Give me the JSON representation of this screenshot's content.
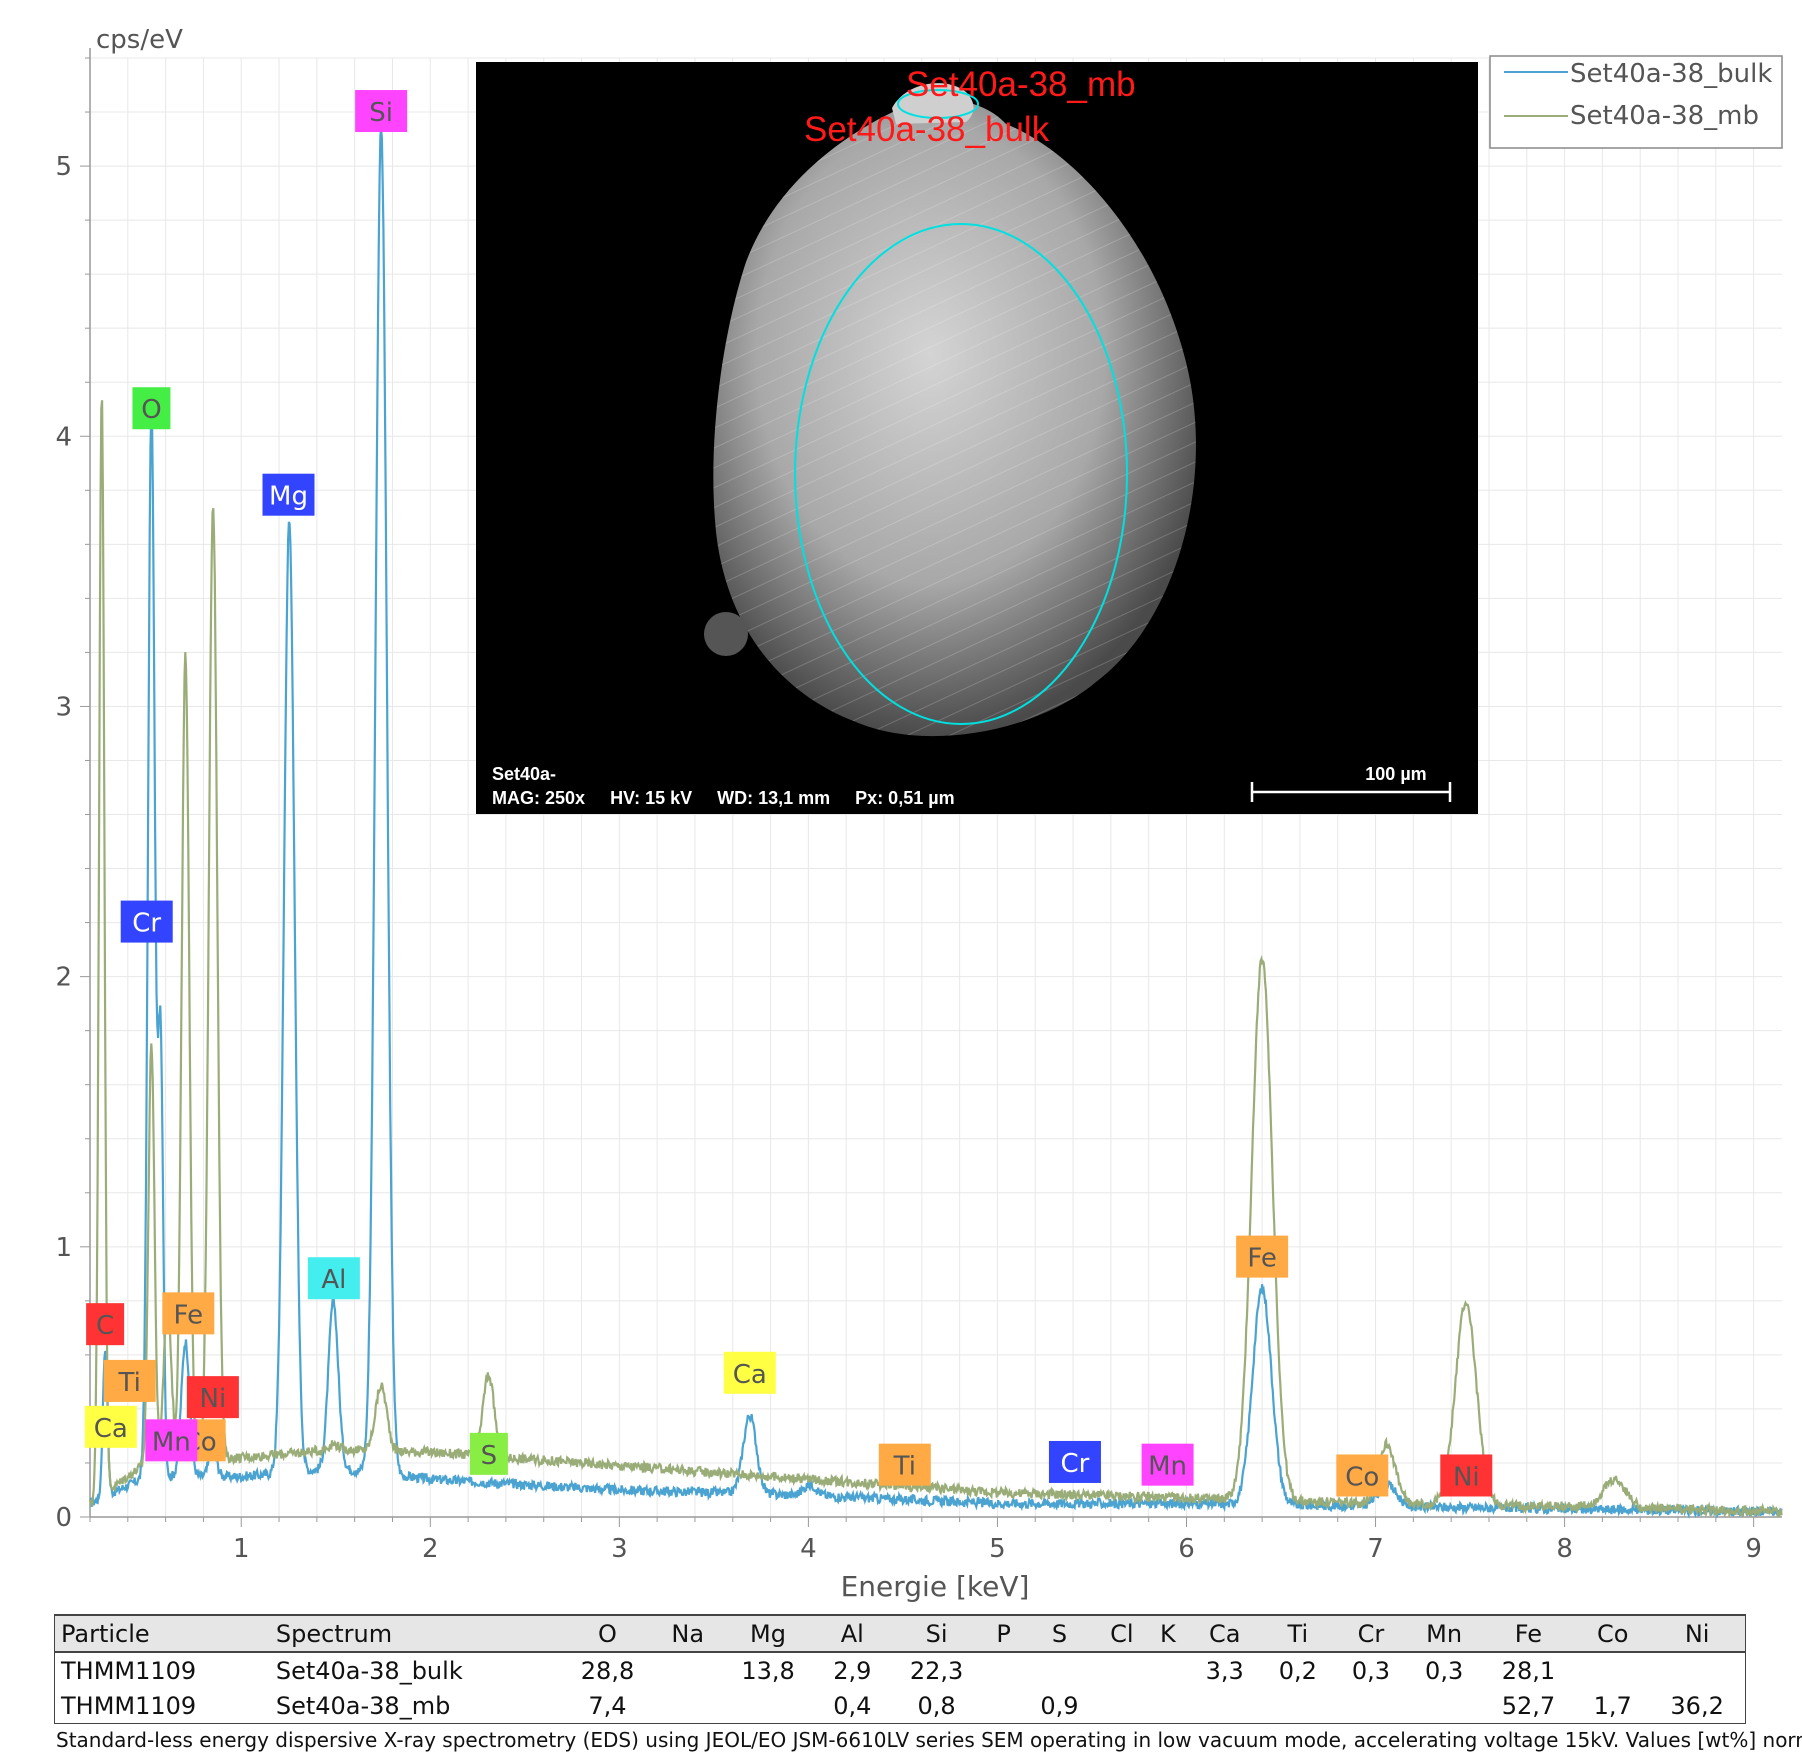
{
  "chart_data": {
    "type": "line",
    "ylabel": "cps/eV",
    "xlabel": "Energie [keV]",
    "xlim": [
      0.2,
      9.15
    ],
    "ylim": [
      0,
      5.4
    ],
    "x_ticks": [
      1,
      2,
      3,
      4,
      5,
      6,
      7,
      8,
      9
    ],
    "y_ticks": [
      0,
      1,
      2,
      3,
      4,
      5
    ],
    "grid": true,
    "legend_position": "top-right",
    "series": [
      {
        "name": "Set40a-38_bulk",
        "color": "#4aa3d0",
        "baseline": [
          [
            0.2,
            0.05
          ],
          [
            0.5,
            0.15
          ],
          [
            1.0,
            0.15
          ],
          [
            1.5,
            0.18
          ],
          [
            2.0,
            0.14
          ],
          [
            3.0,
            0.1
          ],
          [
            4.0,
            0.08
          ],
          [
            5.0,
            0.05
          ],
          [
            6.0,
            0.05
          ],
          [
            7.0,
            0.04
          ],
          [
            8.0,
            0.03
          ],
          [
            9.15,
            0.02
          ]
        ],
        "peaks": [
          {
            "x": 0.28,
            "y": 0.55,
            "w": 0.012
          },
          {
            "x": 0.525,
            "y": 3.95,
            "w": 0.018
          },
          {
            "x": 0.573,
            "y": 1.6,
            "w": 0.014
          },
          {
            "x": 0.705,
            "y": 0.5,
            "w": 0.022
          },
          {
            "x": 0.85,
            "y": 0.1,
            "w": 0.02
          },
          {
            "x": 1.254,
            "y": 3.52,
            "w": 0.028
          },
          {
            "x": 1.487,
            "y": 0.62,
            "w": 0.026
          },
          {
            "x": 1.74,
            "y": 4.98,
            "w": 0.03
          },
          {
            "x": 3.69,
            "y": 0.29,
            "w": 0.035
          },
          {
            "x": 4.01,
            "y": 0.04,
            "w": 0.035
          },
          {
            "x": 6.4,
            "y": 0.8,
            "w": 0.05
          },
          {
            "x": 7.06,
            "y": 0.08,
            "w": 0.05
          }
        ]
      },
      {
        "name": "Set40a-38_mb",
        "color": "#9aad78",
        "baseline": [
          [
            0.2,
            0.05
          ],
          [
            0.5,
            0.2
          ],
          [
            1.0,
            0.22
          ],
          [
            1.5,
            0.25
          ],
          [
            2.0,
            0.24
          ],
          [
            3.0,
            0.19
          ],
          [
            4.0,
            0.14
          ],
          [
            5.0,
            0.09
          ],
          [
            6.0,
            0.07
          ],
          [
            7.0,
            0.05
          ],
          [
            8.0,
            0.04
          ],
          [
            9.15,
            0.02
          ]
        ],
        "peaks": [
          {
            "x": 0.262,
            "y": 4.08,
            "w": 0.014
          },
          {
            "x": 0.525,
            "y": 1.55,
            "w": 0.016
          },
          {
            "x": 0.61,
            "y": 0.6,
            "w": 0.02
          },
          {
            "x": 0.705,
            "y": 2.98,
            "w": 0.02
          },
          {
            "x": 0.851,
            "y": 3.53,
            "w": 0.022
          },
          {
            "x": 1.487,
            "y": 0.02,
            "w": 0.03
          },
          {
            "x": 1.74,
            "y": 0.24,
            "w": 0.03
          },
          {
            "x": 2.308,
            "y": 0.3,
            "w": 0.03
          },
          {
            "x": 6.4,
            "y": 2.0,
            "w": 0.055
          },
          {
            "x": 7.06,
            "y": 0.22,
            "w": 0.045
          },
          {
            "x": 7.478,
            "y": 0.75,
            "w": 0.055
          },
          {
            "x": 8.265,
            "y": 0.1,
            "w": 0.06
          }
        ]
      }
    ],
    "element_labels": [
      {
        "label": "Si",
        "x": 1.74,
        "y": 5.2,
        "color": "#ff44ff"
      },
      {
        "label": "O",
        "x": 0.525,
        "y": 4.1,
        "color": "#44ee44"
      },
      {
        "label": "Mg",
        "x": 1.25,
        "y": 3.78,
        "color": "#3344ff"
      },
      {
        "label": "Cr",
        "x": 0.5,
        "y": 2.2,
        "color": "#3344ff"
      },
      {
        "label": "Al",
        "x": 1.49,
        "y": 0.88,
        "color": "#44eeee"
      },
      {
        "label": "C",
        "x": 0.28,
        "y": 0.71,
        "color": "#ff3333"
      },
      {
        "label": "Fe",
        "x": 0.72,
        "y": 0.75,
        "color": "#ffaa44"
      },
      {
        "label": "Ti",
        "x": 0.41,
        "y": 0.5,
        "color": "#ffaa44"
      },
      {
        "label": "Ni",
        "x": 0.85,
        "y": 0.44,
        "color": "#ff3333"
      },
      {
        "label": "Ca",
        "x": 0.31,
        "y": 0.33,
        "color": "#ffff44"
      },
      {
        "label": "Co",
        "x": 0.78,
        "y": 0.28,
        "color": "#ffaa44"
      },
      {
        "label": "Mn",
        "x": 0.63,
        "y": 0.28,
        "color": "#ff44ff"
      },
      {
        "label": "S",
        "x": 2.31,
        "y": 0.23,
        "color": "#88ee44"
      },
      {
        "label": "Ca",
        "x": 3.69,
        "y": 0.53,
        "color": "#ffff44"
      },
      {
        "label": "Ti",
        "x": 4.51,
        "y": 0.19,
        "color": "#ffaa44"
      },
      {
        "label": "Cr",
        "x": 5.41,
        "y": 0.2,
        "color": "#3344ff"
      },
      {
        "label": "Mn",
        "x": 5.9,
        "y": 0.19,
        "color": "#ff44ff"
      },
      {
        "label": "Fe",
        "x": 6.4,
        "y": 0.96,
        "color": "#ffaa44"
      },
      {
        "label": "Co",
        "x": 6.93,
        "y": 0.15,
        "color": "#ffaa44"
      },
      {
        "label": "Ni",
        "x": 7.48,
        "y": 0.15,
        "color": "#ff3333"
      }
    ]
  },
  "sem_inset": {
    "region_label_mb": "Set40a-38_mb",
    "region_label_bulk": "Set40a-38_bulk",
    "sample_name": "Set40a-",
    "mag": "MAG: 250x",
    "hv": "HV: 15 kV",
    "wd": "WD: 13,1 mm",
    "px": "Px: 0,51 µm",
    "scale_bar_label": "100 µm",
    "region_outline_color": "#00e0e0"
  },
  "table": {
    "headers": [
      "Particle",
      "Spectrum",
      "O",
      "Na",
      "Mg",
      "Al",
      "Si",
      "P",
      "S",
      "Cl",
      "K",
      "Ca",
      "Ti",
      "Cr",
      "Mn",
      "Fe",
      "Co",
      "Ni"
    ],
    "rows": [
      [
        "THMM1109",
        "Set40a-38_bulk",
        "28,8",
        "",
        "13,8",
        "2,9",
        "22,3",
        "",
        "",
        "",
        "",
        "3,3",
        "0,2",
        "0,3",
        "0,3",
        "28,1",
        "",
        ""
      ],
      [
        "THMM1109",
        "Set40a-38_mb",
        "7,4",
        "",
        "",
        "0,4",
        "0,8",
        "",
        "0,9",
        "",
        "",
        "",
        "",
        "",
        "",
        "52,7",
        "1,7",
        "36,2"
      ]
    ]
  },
  "footnote": "Standard-less energy dispersive X-ray spectrometry (EDS) using JEOL/EO JSM-6610LV series SEM operating in low vacuum mode, accelerating voltage 15kV. Values [wt%] normalized."
}
